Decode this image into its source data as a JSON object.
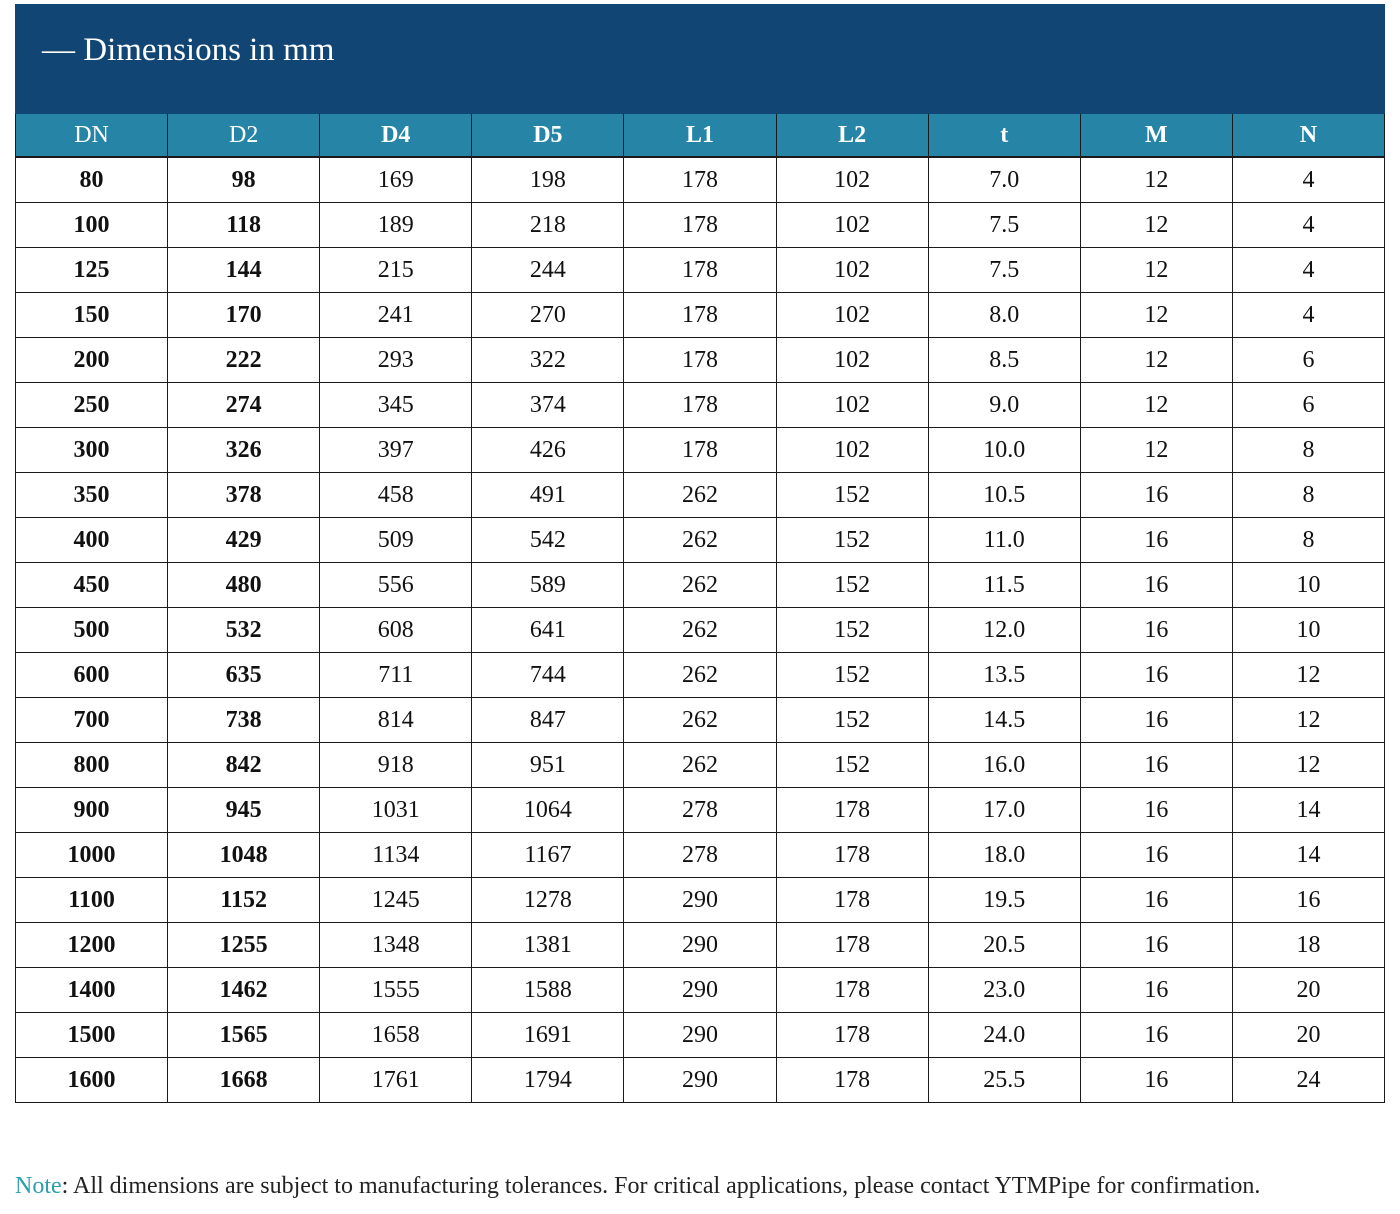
{
  "banner": {
    "title": "— Dimensions in mm"
  },
  "colors": {
    "banner_bg": "#114574",
    "header_bg": "#2684a6",
    "note_label": "#2b9fb0"
  },
  "table": {
    "columns": [
      "DN",
      "D2",
      "D4",
      "D5",
      "L1",
      "L2",
      "t",
      "M",
      "N"
    ],
    "rows": [
      [
        "80",
        "98",
        "169",
        "198",
        "178",
        "102",
        "7.0",
        "12",
        "4"
      ],
      [
        "100",
        "118",
        "189",
        "218",
        "178",
        "102",
        "7.5",
        "12",
        "4"
      ],
      [
        "125",
        "144",
        "215",
        "244",
        "178",
        "102",
        "7.5",
        "12",
        "4"
      ],
      [
        "150",
        "170",
        "241",
        "270",
        "178",
        "102",
        "8.0",
        "12",
        "4"
      ],
      [
        "200",
        "222",
        "293",
        "322",
        "178",
        "102",
        "8.5",
        "12",
        "6"
      ],
      [
        "250",
        "274",
        "345",
        "374",
        "178",
        "102",
        "9.0",
        "12",
        "6"
      ],
      [
        "300",
        "326",
        "397",
        "426",
        "178",
        "102",
        "10.0",
        "12",
        "8"
      ],
      [
        "350",
        "378",
        "458",
        "491",
        "262",
        "152",
        "10.5",
        "16",
        "8"
      ],
      [
        "400",
        "429",
        "509",
        "542",
        "262",
        "152",
        "11.0",
        "16",
        "8"
      ],
      [
        "450",
        "480",
        "556",
        "589",
        "262",
        "152",
        "11.5",
        "16",
        "10"
      ],
      [
        "500",
        "532",
        "608",
        "641",
        "262",
        "152",
        "12.0",
        "16",
        "10"
      ],
      [
        "600",
        "635",
        "711",
        "744",
        "262",
        "152",
        "13.5",
        "16",
        "12"
      ],
      [
        "700",
        "738",
        "814",
        "847",
        "262",
        "152",
        "14.5",
        "16",
        "12"
      ],
      [
        "800",
        "842",
        "918",
        "951",
        "262",
        "152",
        "16.0",
        "16",
        "12"
      ],
      [
        "900",
        "945",
        "1031",
        "1064",
        "278",
        "178",
        "17.0",
        "16",
        "14"
      ],
      [
        "1000",
        "1048",
        "1134",
        "1167",
        "278",
        "178",
        "18.0",
        "16",
        "14"
      ],
      [
        "1100",
        "1152",
        "1245",
        "1278",
        "290",
        "178",
        "19.5",
        "16",
        "16"
      ],
      [
        "1200",
        "1255",
        "1348",
        "1381",
        "290",
        "178",
        "20.5",
        "16",
        "18"
      ],
      [
        "1400",
        "1462",
        "1555",
        "1588",
        "290",
        "178",
        "23.0",
        "16",
        "20"
      ],
      [
        "1500",
        "1565",
        "1658",
        "1691",
        "290",
        "178",
        "24.0",
        "16",
        "20"
      ],
      [
        "1600",
        "1668",
        "1761",
        "1794",
        "290",
        "178",
        "25.5",
        "16",
        "24"
      ]
    ]
  },
  "note": {
    "label": "Note",
    "text": ": All dimensions are subject to manufacturing tolerances. For critical applications, please contact YTMPipe for confirmation."
  }
}
